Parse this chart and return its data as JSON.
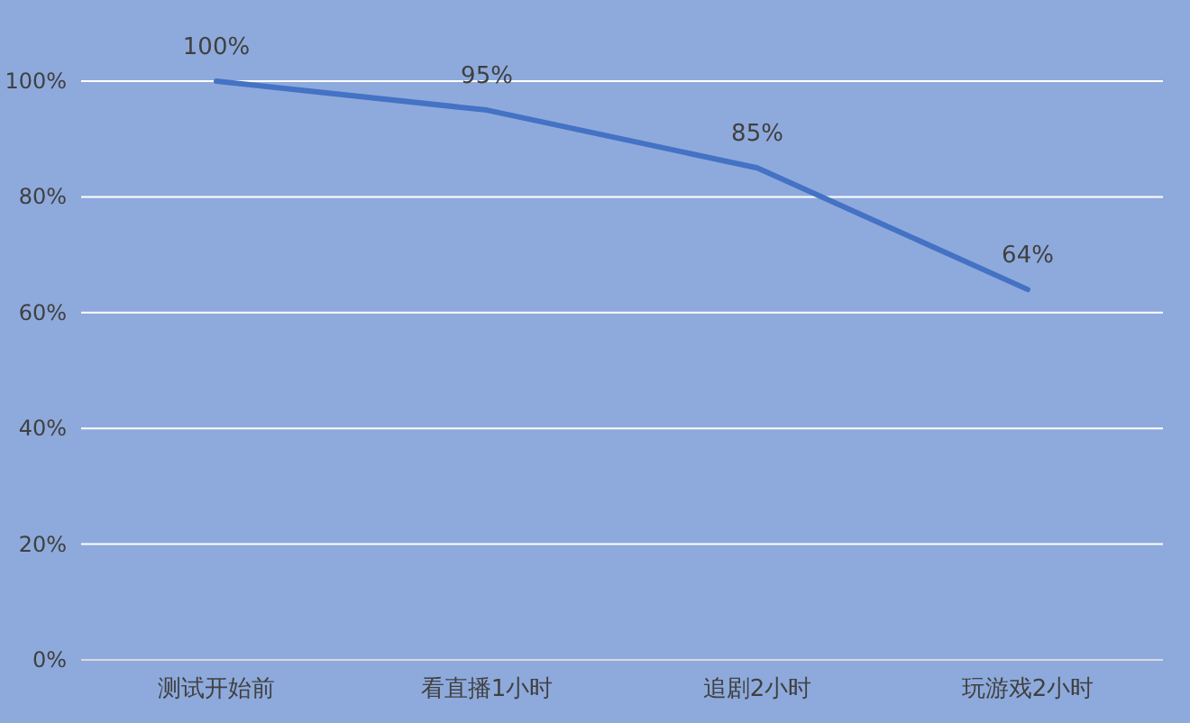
{
  "chart_data": {
    "type": "line",
    "categories": [
      "测试开始前",
      "看直播1小时",
      "追剧2小时",
      "玩游戏2小时"
    ],
    "series": [
      {
        "color": "#4472c4",
        "values": [
          100,
          95,
          85,
          64
        ]
      }
    ],
    "ylim": [
      0,
      100
    ],
    "yticks": [
      {
        "value": 0,
        "label": "0%"
      },
      {
        "value": 20,
        "label": "20%"
      },
      {
        "value": 40,
        "label": "40%"
      },
      {
        "value": 60,
        "label": "60%"
      },
      {
        "value": 80,
        "label": "80%"
      },
      {
        "value": 100,
        "label": "100%"
      }
    ],
    "grid": "y",
    "value_labels": [
      "100%",
      "95%",
      "85%",
      "64%"
    ],
    "marker": "none",
    "line_style": "solid"
  }
}
